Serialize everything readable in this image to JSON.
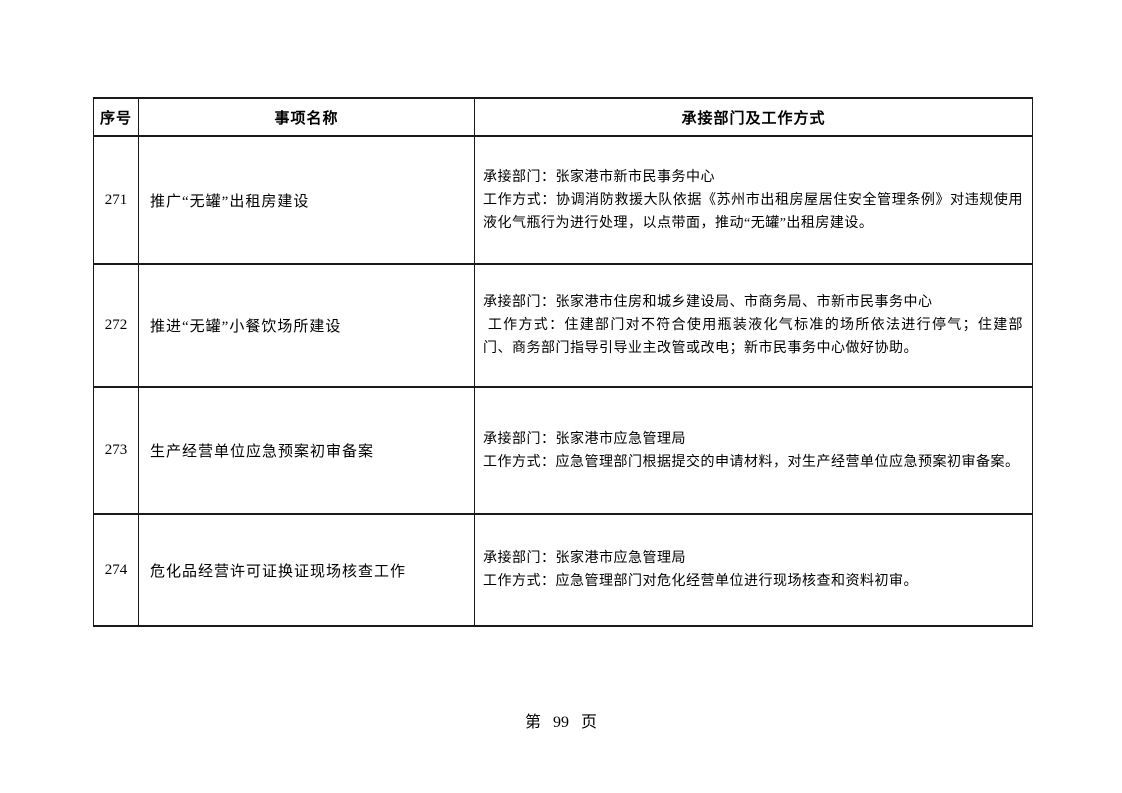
{
  "document": {
    "table": {
      "headers": {
        "seq": "序号",
        "name": "事项名称",
        "detail": "承接部门及工作方式"
      },
      "rows": [
        {
          "seq": "271",
          "name": "推广“无罐”出租房建设",
          "dept": "承接部门：张家港市新市民事务中心",
          "method": "工作方式：协调消防救援大队依据《苏州市出租房屋居住安全管理条例》对违规使用液化气瓶行为进行处理，以点带面，推动“无罐”出租房建设。"
        },
        {
          "seq": "272",
          "name": "推进“无罐”小餐饮场所建设",
          "dept": "承接部门：张家港市住房和城乡建设局、市商务局、市新市民事务中心",
          "method": " 工作方式：住建部门对不符合使用瓶装液化气标准的场所依法进行停气；住建部门、商务部门指导引导业主改管或改电；新市民事务中心做好协助。"
        },
        {
          "seq": "273",
          "name": "生产经营单位应急预案初审备案",
          "dept": "承接部门：张家港市应急管理局",
          "method": "工作方式：应急管理部门根据提交的申请材料，对生产经营单位应急预案初审备案。"
        },
        {
          "seq": "274",
          "name": "危化品经营许可证换证现场核查工作",
          "dept": "承接部门：张家港市应急管理局",
          "method": "工作方式：应急管理部门对危化经营单位进行现场核查和资料初审。"
        }
      ]
    },
    "footer": {
      "page_label": "第 99 页"
    }
  }
}
